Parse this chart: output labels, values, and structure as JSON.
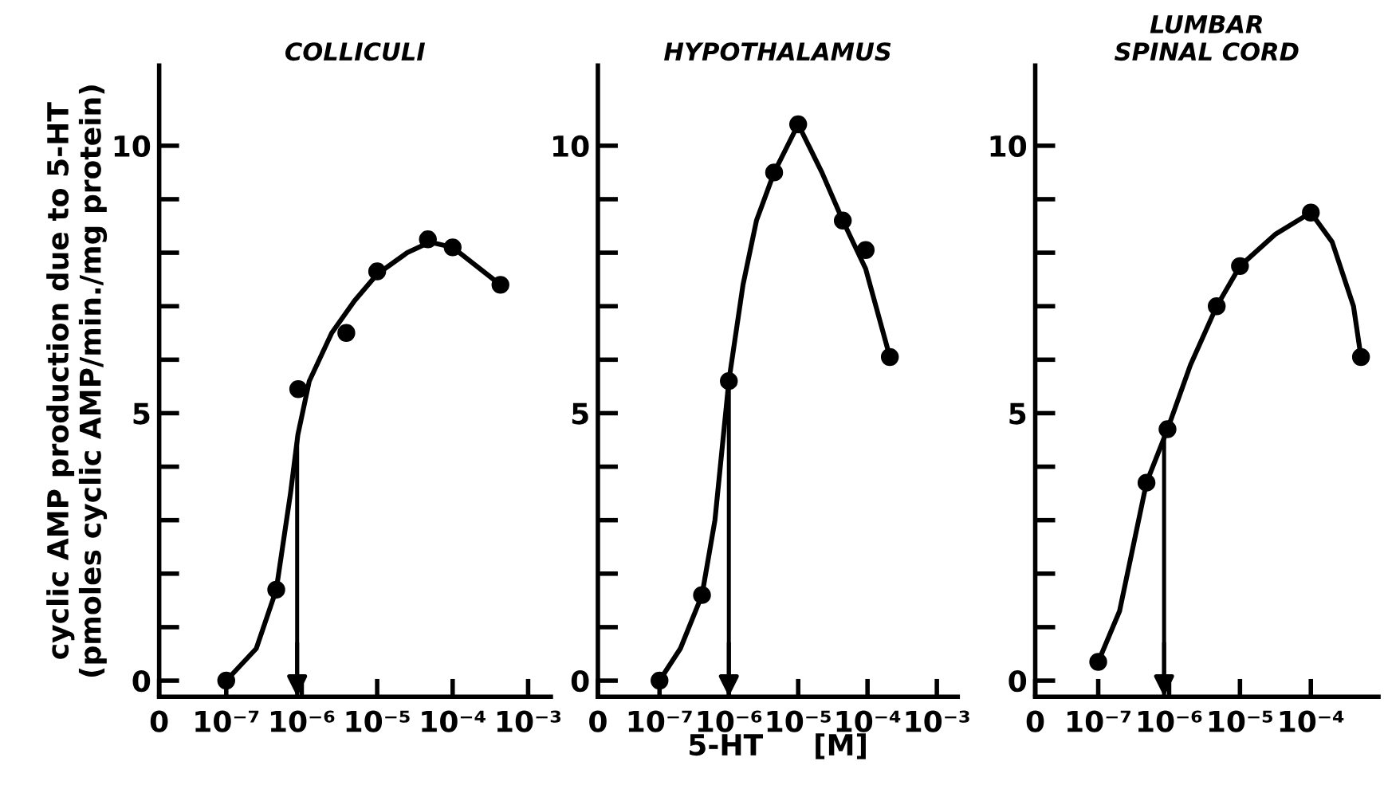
{
  "chart_data": [
    {
      "type": "line",
      "title": "COLLICULI",
      "ylabel": "cyclic AMP production due to 5-HT\n(pmoles cyclic AMP/min./mg protein)",
      "log": "x",
      "marker": "circle",
      "xlim": [
        0,
        0.002
      ],
      "xticks": [
        0,
        {
          "value": 1e-07,
          "label": "10⁻⁷"
        },
        {
          "value": 1e-06,
          "label": "10⁻⁶"
        },
        {
          "value": 1e-05,
          "label": "10⁻⁵"
        },
        {
          "value": 0.0001,
          "label": "10⁻⁴"
        },
        {
          "value": 0.001,
          "label": "10⁻³"
        }
      ],
      "ylim": [
        -0.3,
        11.5
      ],
      "yticks": [
        0,
        5,
        10
      ],
      "series": [
        {
          "type": "scatter",
          "color": "#000000",
          "x": [
            1e-07,
            4.6e-07,
            9e-07,
            3.9e-06,
            1e-05,
            4.7e-05,
            0.0001,
            0.00043
          ],
          "values": [
            0.0,
            1.7,
            5.45,
            6.5,
            7.65,
            8.25,
            8.1,
            7.4
          ]
        },
        {
          "marker": "none",
          "color": "#000000",
          "x": [
            1e-07,
            2.5e-07,
            4.6e-07,
            7.1e-07,
            8.9e-07,
            1.26e-06,
            2.5e-06,
            5e-06,
            1e-05,
            2.5e-05,
            5e-05,
            0.0001,
            0.00043
          ],
          "values": [
            0.0,
            0.6,
            1.7,
            3.5,
            4.6,
            5.6,
            6.5,
            7.1,
            7.6,
            8.0,
            8.2,
            8.1,
            7.4
          ]
        }
      ],
      "ref_lines": [
        {
          "axis": "x",
          "value": 8.7e-07
        }
      ]
    },
    {
      "type": "line",
      "title": "HYPOTHALAMUS",
      "xlabel": "5-HT     [M]",
      "log": "x",
      "marker": "circle",
      "xlim": [
        0,
        0.002
      ],
      "xticks": [
        0,
        {
          "value": 1e-07,
          "label": "10⁻⁷"
        },
        {
          "value": 1e-06,
          "label": "10⁻⁶"
        },
        {
          "value": 1e-05,
          "label": "10⁻⁵"
        },
        {
          "value": 0.0001,
          "label": "10⁻⁴"
        },
        {
          "value": 0.001,
          "label": "10⁻³"
        }
      ],
      "ylim": [
        -0.3,
        11.5
      ],
      "yticks": [
        0,
        5,
        10
      ],
      "series": [
        {
          "type": "scatter",
          "color": "#000000",
          "x": [
            1e-07,
            4.1e-07,
            1e-06,
            4.5e-06,
            1e-05,
            4.4e-05,
            9.4e-05,
            0.00021
          ],
          "values": [
            0.0,
            1.6,
            5.6,
            9.5,
            10.4,
            8.6,
            8.05,
            6.05
          ]
        },
        {
          "marker": "none",
          "color": "#000000",
          "x": [
            1e-07,
            2e-07,
            4.1e-07,
            6.3e-07,
            1e-06,
            1.6e-06,
            2.5e-06,
            4.5e-06,
            1e-05,
            2.2e-05,
            4.4e-05,
            9.4e-05,
            0.00021
          ],
          "values": [
            0.0,
            0.6,
            1.6,
            3.0,
            5.6,
            7.4,
            8.6,
            9.5,
            10.4,
            9.5,
            8.6,
            7.7,
            6.05
          ]
        }
      ],
      "ref_lines": [
        {
          "axis": "x",
          "value": 1e-06
        }
      ]
    },
    {
      "type": "line",
      "title": "LUMBAR\nSPINAL CORD",
      "log": "x",
      "marker": "circle",
      "xlim": [
        0,
        0.0009
      ],
      "xticks": [
        0,
        {
          "value": 1e-07,
          "label": "10⁻⁷"
        },
        {
          "value": 1e-06,
          "label": "10⁻⁶"
        },
        {
          "value": 1e-05,
          "label": "10⁻⁵"
        },
        {
          "value": 0.0001,
          "label": "10⁻⁴"
        }
      ],
      "ylim": [
        -0.3,
        11.5
      ],
      "yticks": [
        0,
        5,
        10
      ],
      "series": [
        {
          "type": "scatter",
          "color": "#000000",
          "x": [
            1e-07,
            4.8e-07,
            9.5e-07,
            4.7e-06,
            1e-05,
            0.0001,
            0.00051
          ],
          "values": [
            0.35,
            3.7,
            4.7,
            7.0,
            7.75,
            8.75,
            6.05
          ]
        },
        {
          "marker": "none",
          "color": "#000000",
          "x": [
            1e-07,
            2e-07,
            4.8e-07,
            9.5e-07,
            2e-06,
            4.7e-06,
            1e-05,
            3.2e-05,
            0.0001,
            0.0002,
            0.0004,
            0.00051
          ],
          "values": [
            0.35,
            1.3,
            3.7,
            4.7,
            5.9,
            7.0,
            7.75,
            8.35,
            8.75,
            8.2,
            7.0,
            6.05
          ]
        }
      ],
      "ref_lines": [
        {
          "axis": "x",
          "value": 8.5e-07
        }
      ]
    }
  ]
}
